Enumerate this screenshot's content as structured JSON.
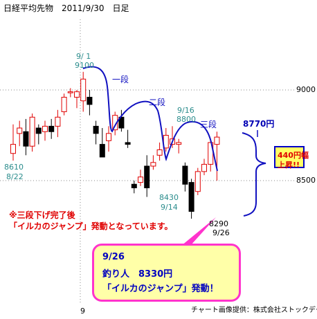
{
  "title": "日経平均先物　2011/9/30　日足",
  "credit": "チャート画像提供：株式会社ストックデータバンク",
  "chart_data": {
    "type": "candlestick",
    "title": "日経平均先物　2011/9/30　日足",
    "y_ticks": [
      9000,
      8500
    ],
    "x_ticks": [
      "9"
    ],
    "ylim": [
      8060,
      9380
    ],
    "grid": "dotted",
    "colors": {
      "up": "#ffffff",
      "down": "#000000",
      "up_border": "#e00000",
      "down_border": "#000000"
    },
    "candles": [
      {
        "open": 8650,
        "high": 8810,
        "low": 8610,
        "close": 8700
      },
      {
        "open": 8760,
        "high": 8830,
        "low": 8690,
        "close": 8790
      },
      {
        "open": 8770,
        "high": 8840,
        "low": 8640,
        "close": 8690
      },
      {
        "open": 8690,
        "high": 8870,
        "low": 8660,
        "close": 8850
      },
      {
        "open": 8790,
        "high": 8810,
        "low": 8700,
        "close": 8760
      },
      {
        "open": 8770,
        "high": 8830,
        "low": 8720,
        "close": 8800
      },
      {
        "open": 8800,
        "high": 8840,
        "low": 8730,
        "close": 8770
      },
      {
        "open": 8800,
        "high": 8890,
        "low": 8740,
        "close": 8850
      },
      {
        "open": 8880,
        "high": 8980,
        "low": 8860,
        "close": 8960
      },
      {
        "open": 8990,
        "high": 9010,
        "low": 8960,
        "close": 8990
      },
      {
        "open": 8960,
        "high": 9000,
        "low": 8900,
        "close": 8990
      },
      {
        "open": 8940,
        "high": 9100,
        "low": 8880,
        "close": 9060
      },
      {
        "open": 8960,
        "high": 9000,
        "low": 8860,
        "close": 8920
      },
      {
        "open": 8800,
        "high": 8830,
        "low": 8700,
        "close": 8760
      },
      {
        "open": 8700,
        "high": 8790,
        "low": 8640,
        "close": 8630
      },
      {
        "open": 8720,
        "high": 8800,
        "low": 8660,
        "close": 8760
      },
      {
        "open": 8780,
        "high": 8880,
        "low": 8750,
        "close": 8860
      },
      {
        "open": 8850,
        "high": 8890,
        "low": 8770,
        "close": 8790
      },
      {
        "open": 8710,
        "high": 8780,
        "low": 8680,
        "close": 8700
      },
      {
        "open": 8480,
        "high": 8500,
        "low": 8430,
        "close": 8460
      },
      {
        "open": 8490,
        "high": 8560,
        "low": 8470,
        "close": 8520
      },
      {
        "open": 8580,
        "high": 8640,
        "low": 8410,
        "close": 8460
      },
      {
        "open": 8580,
        "high": 8640,
        "low": 8560,
        "close": 8600
      },
      {
        "open": 8640,
        "high": 8710,
        "low": 8610,
        "close": 8670
      },
      {
        "open": 8680,
        "high": 8790,
        "low": 8660,
        "close": 8750
      },
      {
        "open": 8700,
        "high": 8800,
        "low": 8680,
        "close": 8730
      },
      {
        "open": 8700,
        "high": 8730,
        "low": 8650,
        "close": 8710
      },
      {
        "open": 8580,
        "high": 8600,
        "low": 8440,
        "close": 8480
      },
      {
        "open": 8490,
        "high": 8510,
        "low": 8290,
        "close": 8330
      },
      {
        "open": 8440,
        "high": 8570,
        "low": 8420,
        "close": 8550
      },
      {
        "open": 8550,
        "high": 8620,
        "low": 8530,
        "close": 8590
      },
      {
        "open": 8590,
        "high": 8730,
        "low": 8550,
        "close": 8710
      },
      {
        "open": 8700,
        "high": 8770,
        "low": 8500,
        "close": 8740
      }
    ],
    "annotations": {
      "points": [
        {
          "date": "9/ 1",
          "price": "9100"
        },
        {
          "date": "8/22",
          "price": "8610"
        },
        {
          "date": "9/16",
          "price": "8800"
        },
        {
          "date": "9/14",
          "price": "8430"
        },
        {
          "date": "9/26",
          "price": "8290"
        }
      ],
      "waves": [
        "一段",
        "二段",
        "三段"
      ],
      "last_price": "8770円",
      "rise_box": [
        "440円幅",
        "上昇!!"
      ],
      "note": [
        "※三段下げ完了後",
        "「イルカのジャンプ」発動となっています。"
      ],
      "callout": [
        "9/26",
        "釣り人　8330円",
        "「イルカのジャンプ」発動！"
      ]
    }
  }
}
